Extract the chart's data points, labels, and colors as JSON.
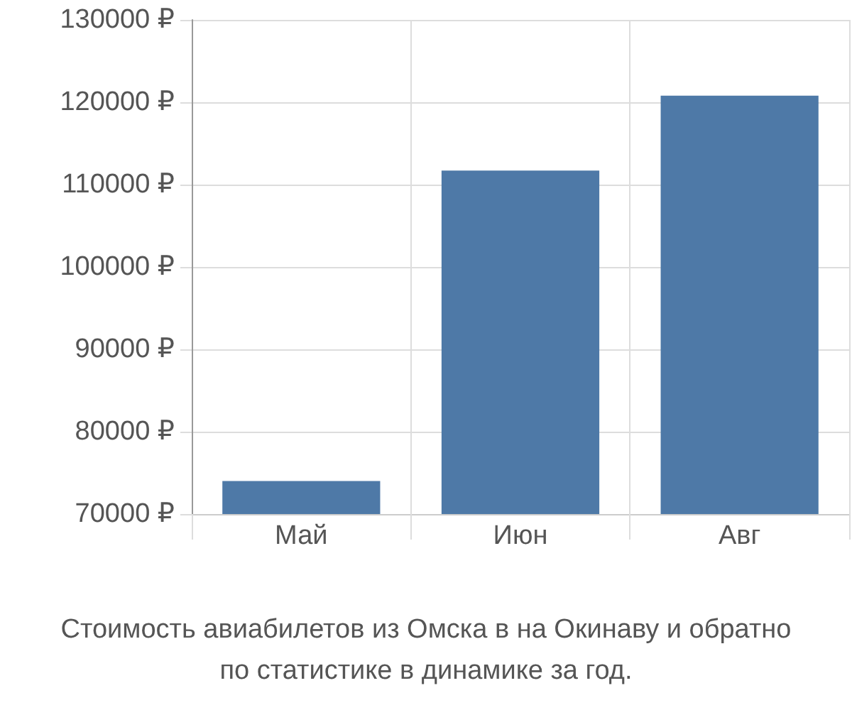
{
  "chart_data": {
    "type": "bar",
    "title": "Стоимость авиабилетов из Омска в на Окинаву и обратно\nпо статистике в динамике за год.",
    "categories": [
      "Май",
      "Июн",
      "Авг"
    ],
    "values": [
      74000,
      111700,
      120800
    ],
    "color": "#4e79a7",
    "ylim": [
      70000,
      130000
    ],
    "yticks": [
      {
        "value": 70000,
        "label": "70000 ₽"
      },
      {
        "value": 80000,
        "label": "80000 ₽"
      },
      {
        "value": 90000,
        "label": "90000 ₽"
      },
      {
        "value": 100000,
        "label": "100000 ₽"
      },
      {
        "value": 110000,
        "label": "110000 ₽"
      },
      {
        "value": 120000,
        "label": "120000 ₽"
      },
      {
        "value": 130000,
        "label": "130000 ₽"
      }
    ],
    "grid": true
  }
}
